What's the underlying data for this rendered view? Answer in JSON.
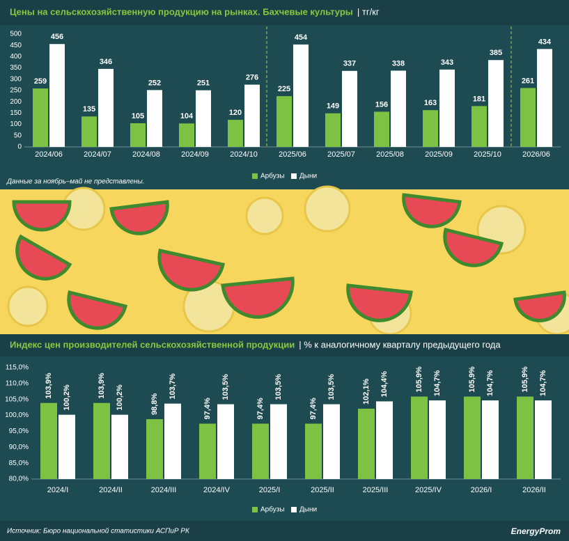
{
  "chart_data": [
    {
      "type": "bar",
      "title": "Цены на сельскохозяйственную продукцию на рынках. Бахчевые культуры",
      "subtitle": "| тг/кг",
      "note": "Данные за ноябрь–май не представлены.",
      "categories": [
        "2024/06",
        "2024/07",
        "2024/08",
        "2024/09",
        "2024/10",
        "2025/06",
        "2025/07",
        "2025/08",
        "2025/09",
        "2025/10",
        "2026/06"
      ],
      "series": [
        {
          "name": "Арбузы",
          "color": "#7dc242",
          "values": [
            259,
            135,
            105,
            104,
            120,
            225,
            149,
            156,
            163,
            181,
            261
          ]
        },
        {
          "name": "Дыни",
          "color": "#ffffff",
          "values": [
            456,
            346,
            252,
            251,
            276,
            454,
            337,
            338,
            343,
            385,
            434
          ]
        }
      ],
      "ylim": [
        0,
        500
      ],
      "yticks": [
        0,
        50,
        100,
        150,
        200,
        250,
        300,
        350,
        400,
        450,
        500
      ],
      "grid": false
    },
    {
      "type": "bar",
      "title": "Индекс цен производителей сельскохозяйственной продукции",
      "subtitle": "| % к аналогичному кварталу предыдущего года",
      "categories": [
        "2024/I",
        "2024/II",
        "2024/III",
        "2024/IV",
        "2025/I",
        "2025/II",
        "2025/III",
        "2025/IV",
        "2026/I",
        "2026/II"
      ],
      "series": [
        {
          "name": "Арбузы",
          "color": "#7dc242",
          "values": [
            103.9,
            103.9,
            98.8,
            97.4,
            97.4,
            97.4,
            102.1,
            105.9,
            105.9,
            105.9
          ],
          "value_labels": [
            "103,9%",
            "103,9%",
            "98,8%",
            "97,4%",
            "97,4%",
            "97,4%",
            "102,1%",
            "105,9%",
            "105,9%",
            "105,9%"
          ]
        },
        {
          "name": "Дыни",
          "color": "#ffffff",
          "values": [
            100.2,
            100.2,
            103.7,
            103.5,
            103.5,
            103.5,
            104.4,
            104.7,
            104.7,
            104.7
          ],
          "value_labels": [
            "100,2%",
            "100,2%",
            "103,7%",
            "103,5%",
            "103,5%",
            "103,5%",
            "104,4%",
            "104,7%",
            "104,7%",
            "104,7%"
          ]
        }
      ],
      "ylim": [
        80,
        115
      ],
      "yticks": [
        {
          "value": 80,
          "label": "80,0%"
        },
        {
          "value": 85,
          "label": "85,0%"
        },
        {
          "value": 90,
          "label": "90,0%"
        },
        {
          "value": 95,
          "label": "95,0%"
        },
        {
          "value": 100,
          "label": "100,0%"
        },
        {
          "value": 105,
          "label": "105,0%"
        },
        {
          "value": 110,
          "label": "110,0%"
        },
        {
          "value": 115,
          "label": "115,0%"
        }
      ],
      "grid": false
    }
  ],
  "source": "Источник: Бюро национальной статистики АСПиР РК",
  "logo": "EnergyProm"
}
